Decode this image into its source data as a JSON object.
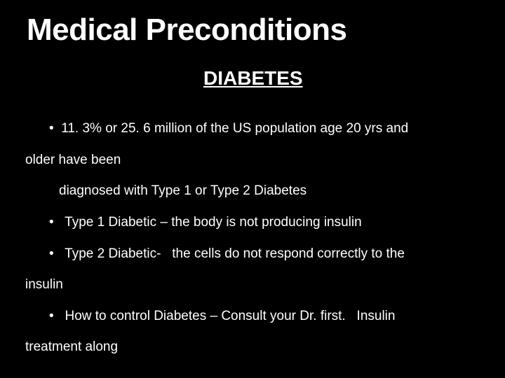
{
  "slide": {
    "background_color": "#000000",
    "text_color": "#ffffff",
    "title": {
      "text": "Medical Preconditions",
      "font_family": "Arial Black",
      "font_size_pt": 33,
      "font_weight": 900
    },
    "subtitle": {
      "text": "DIABETES",
      "font_size_pt": 21,
      "font_weight": 700,
      "underline": true
    },
    "body": {
      "font_size_pt": 14,
      "line_height": 2.35,
      "lines": [
        {
          "text": "•  11. 3% or 25. 6 million of the US population age 20 yrs and",
          "indent": 0
        },
        {
          "text": "older have been",
          "indent": -1
        },
        {
          "text": "diagnosed with Type 1 or Type 2 Diabetes",
          "indent": 1
        },
        {
          "text": "•   Type 1 Diabetic – the body is not producing insulin",
          "indent": 0
        },
        {
          "text": "•   Type 2 Diabetic-   the cells do not respond correctly to the",
          "indent": 0
        },
        {
          "text": "insulin",
          "indent": -1
        },
        {
          "text": "•   How to control Diabetes – Consult your Dr. first.   Insulin",
          "indent": 0
        },
        {
          "text": "treatment along",
          "indent": -1
        }
      ]
    }
  }
}
